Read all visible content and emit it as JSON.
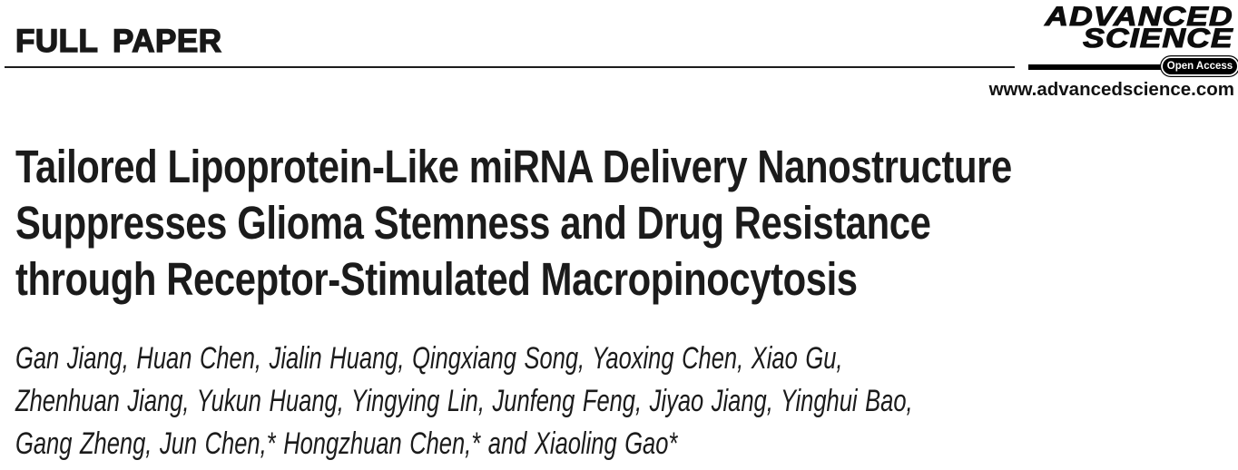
{
  "header": {
    "section_label": "FULL PAPER",
    "journal_logo": {
      "line1": "ADVANCED",
      "line2": "SCIENCE",
      "badge": "Open Access"
    },
    "website": "www.advancedscience.com"
  },
  "article": {
    "title_lines": [
      "Tailored Lipoprotein-Like miRNA Delivery Nanostructure",
      "Suppresses Glioma Stemness and Drug Resistance",
      "through Receptor-Stimulated Macropinocytosis"
    ],
    "author_lines": [
      "Gan Jiang, Huan Chen, Jialin Huang, Qingxiang Song, Yaoxing Chen, Xiao Gu,",
      "Zhenhuan Jiang, Yukun Huang, Yingying Lin, Junfeng Feng, Jiyao Jiang, Yinghui Bao,",
      "Gang Zheng, Jun Chen,* Hongzhuan Chen,* and Xiaoling Gao*"
    ]
  },
  "colors": {
    "text": "#1b1b1b",
    "accent_black": "#000000",
    "background": "#ffffff"
  }
}
